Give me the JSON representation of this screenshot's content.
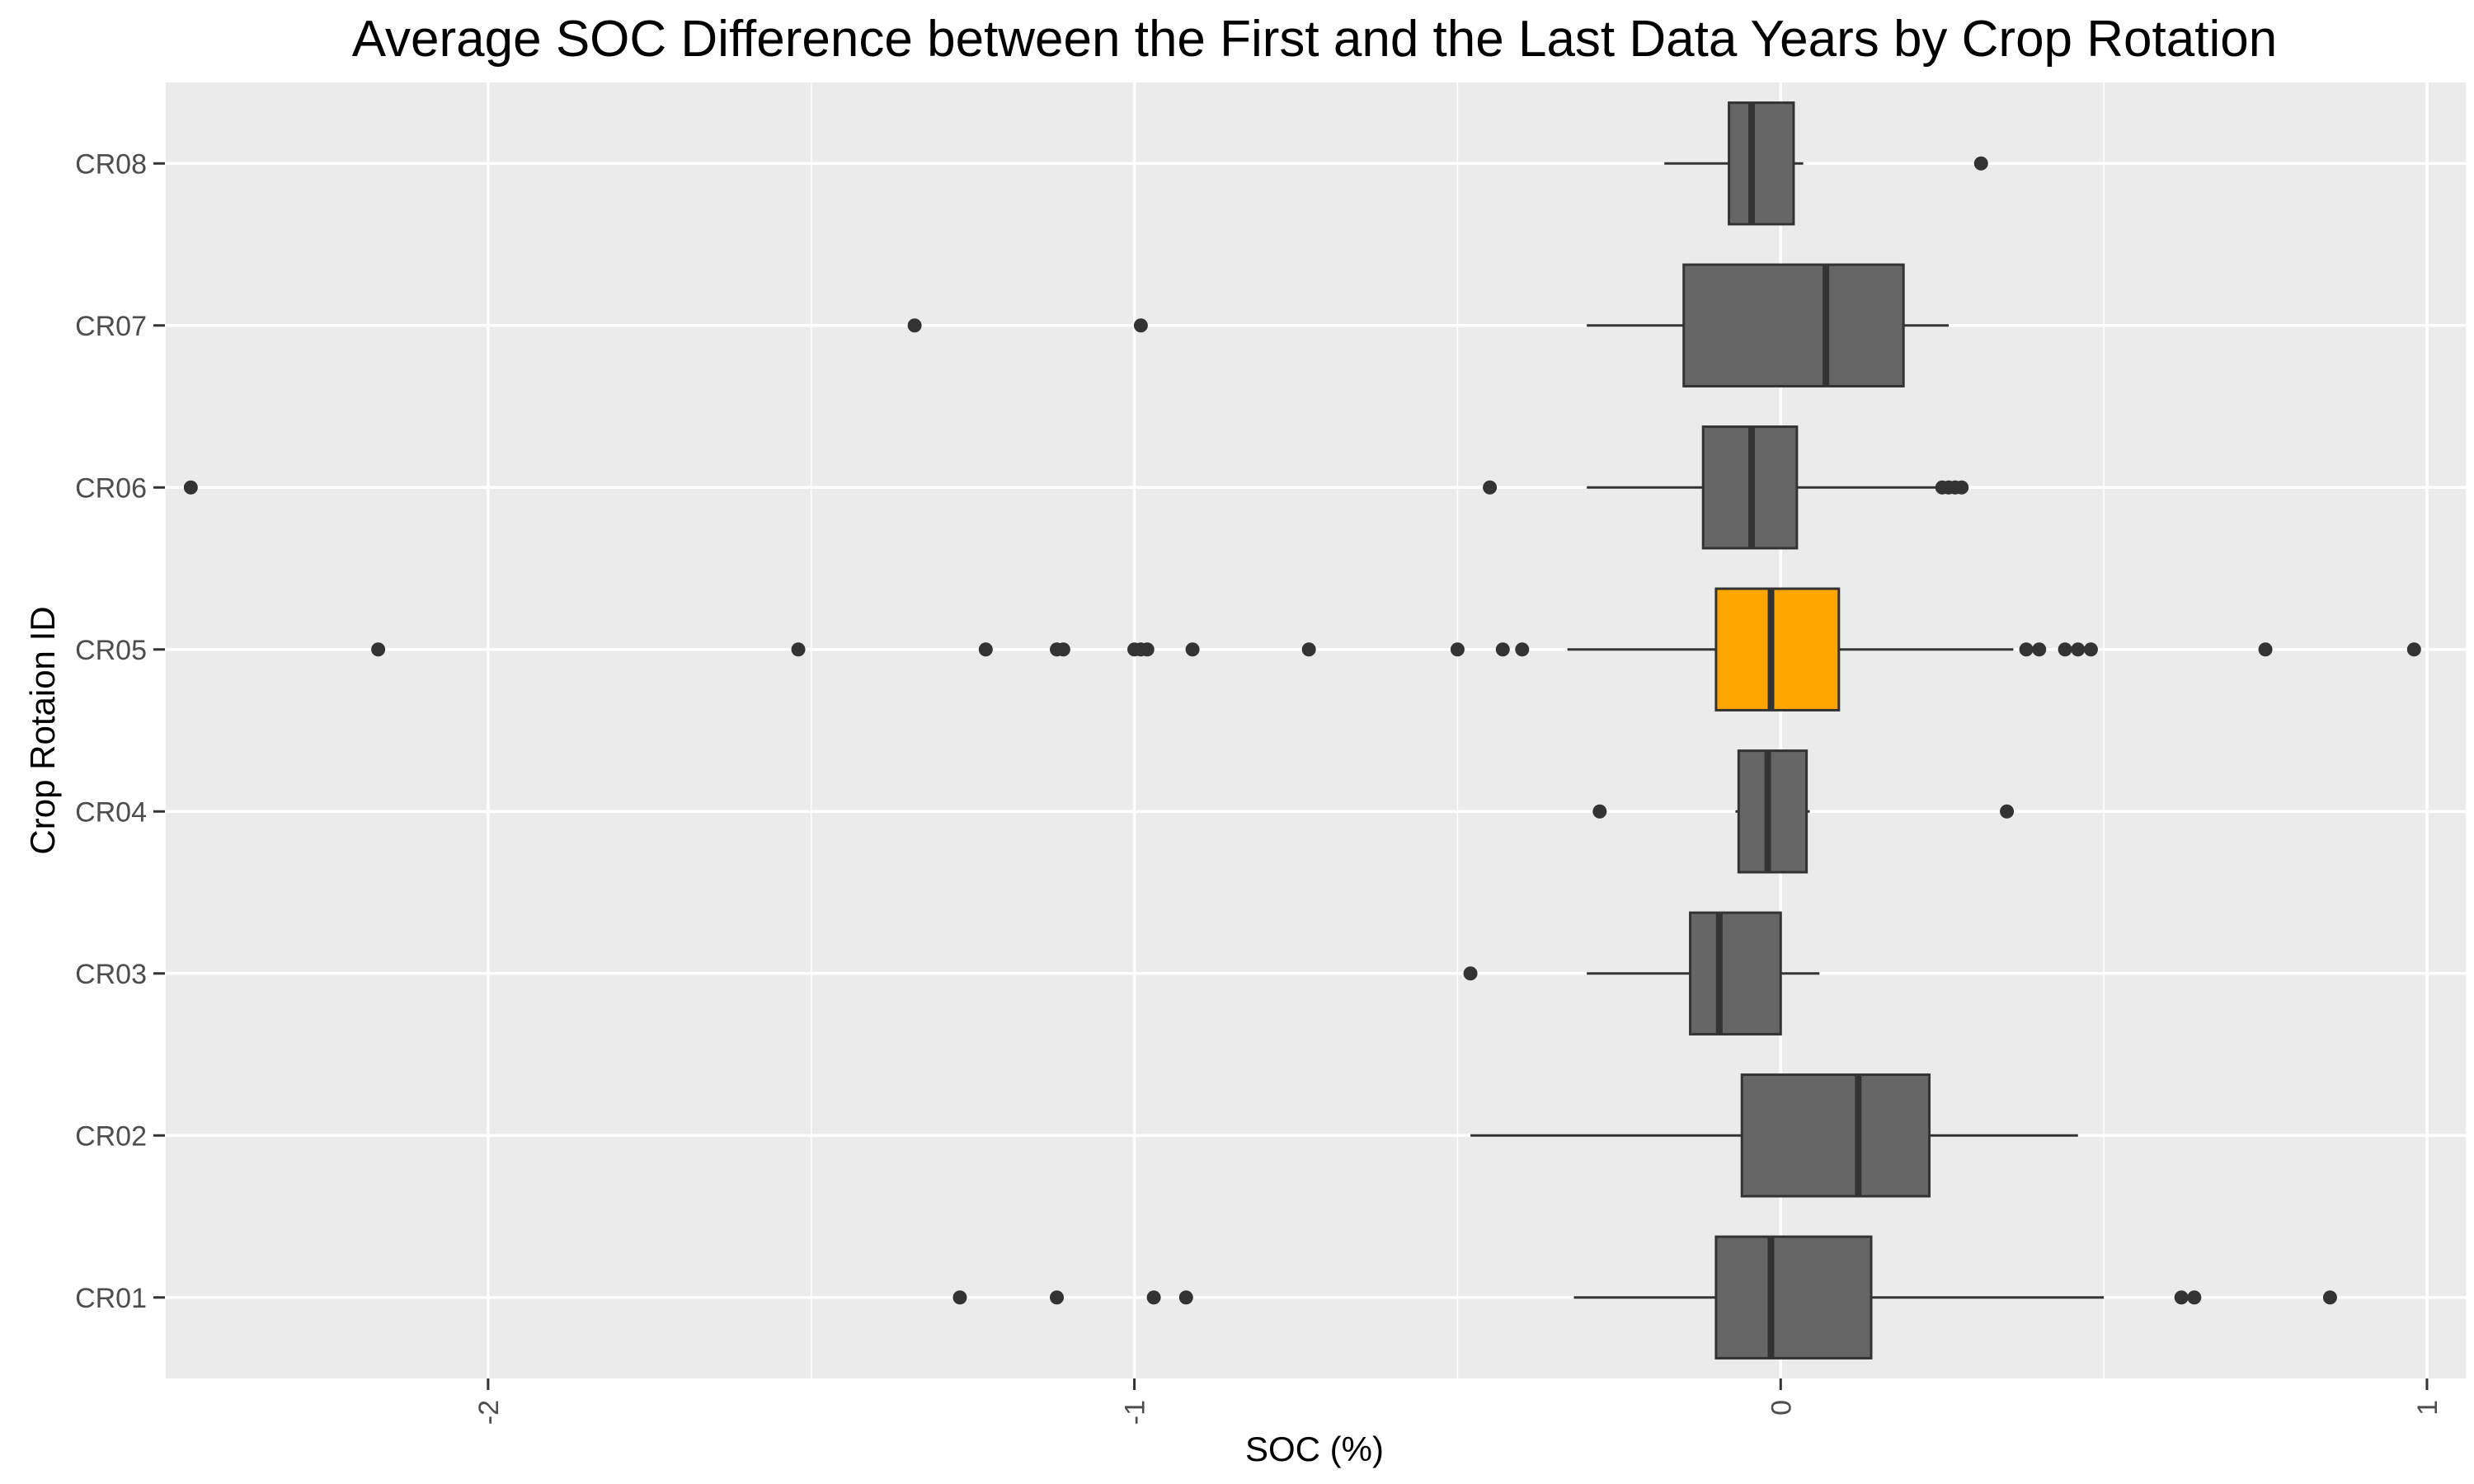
{
  "chart_data": {
    "type": "boxplot",
    "title": "Average SOC Difference between the First and the Last Data Years by Crop Rotation",
    "xlabel": "SOC (%)",
    "ylabel": "Crop Rotaion ID",
    "xlim": [
      -2.5,
      1.06
    ],
    "x_ticks": [
      -2,
      -1,
      0,
      1
    ],
    "x_tick_labels": [
      "-2",
      "-1",
      "0",
      "1"
    ],
    "grid": true,
    "orientation": "horizontal",
    "categories": [
      "CR01",
      "CR02",
      "CR03",
      "CR04",
      "CR05",
      "CR06",
      "CR07",
      "CR08"
    ],
    "boxes": [
      {
        "category": "CR01",
        "whisker_low": -0.32,
        "q1": -0.1,
        "median": -0.015,
        "q3": 0.14,
        "whisker_high": 0.5,
        "outliers": [
          -1.27,
          -1.12,
          -0.97,
          -0.92,
          0.62,
          0.64,
          0.85
        ]
      },
      {
        "category": "CR02",
        "whisker_low": -0.48,
        "q1": -0.06,
        "median": 0.12,
        "q3": 0.23,
        "whisker_high": 0.46,
        "outliers": []
      },
      {
        "category": "CR03",
        "whisker_low": -0.3,
        "q1": -0.14,
        "median": -0.095,
        "q3": 0.0,
        "whisker_high": 0.06,
        "outliers": [
          -0.48
        ]
      },
      {
        "category": "CR04",
        "whisker_low": -0.07,
        "q1": -0.065,
        "median": -0.02,
        "q3": 0.04,
        "whisker_high": 0.045,
        "outliers": [
          -0.28,
          0.35
        ]
      },
      {
        "category": "CR05",
        "whisker_low": -0.33,
        "q1": -0.1,
        "median": -0.015,
        "q3": 0.09,
        "whisker_high": 0.36,
        "outliers": [
          -2.17,
          -1.52,
          -1.23,
          -1.12,
          -1.11,
          -1.0,
          -0.99,
          -0.98,
          -0.91,
          -0.73,
          -0.5,
          -0.43,
          -0.4,
          0.38,
          0.4,
          0.44,
          0.46,
          0.48,
          0.75,
          0.98
        ],
        "highlight": true
      },
      {
        "category": "CR06",
        "whisker_low": -0.3,
        "q1": -0.12,
        "median": -0.045,
        "q3": 0.025,
        "whisker_high": 0.24,
        "outliers": [
          -2.46,
          -0.45,
          0.25,
          0.26,
          0.27,
          0.28
        ]
      },
      {
        "category": "CR07",
        "whisker_low": -0.3,
        "q1": -0.15,
        "median": 0.07,
        "q3": 0.19,
        "whisker_high": 0.26,
        "outliers": [
          -1.34,
          -0.99
        ]
      },
      {
        "category": "CR08",
        "whisker_low": -0.18,
        "q1": -0.08,
        "median": -0.045,
        "q3": 0.02,
        "whisker_high": 0.035,
        "outliers": [
          0.31
        ]
      }
    ],
    "colors": {
      "panel_background": "#ebebeb",
      "grid": "#ffffff",
      "box_fill": "#666666",
      "box_highlight_fill": "#ffa500",
      "box_stroke": "#333333",
      "outlier": "#333333",
      "tick": "#333333"
    }
  }
}
